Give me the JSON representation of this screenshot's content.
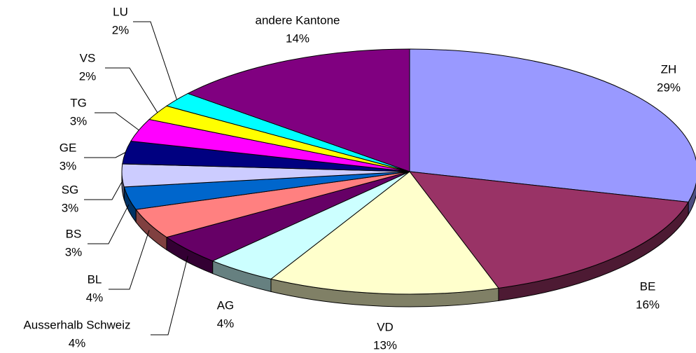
{
  "chart_data": {
    "type": "pie",
    "categories": [
      "ZH",
      "BE",
      "VD",
      "AG",
      "Ausserhalb Schweiz",
      "BL",
      "BS",
      "SG",
      "GE",
      "TG",
      "VS",
      "LU",
      "andere Kantone"
    ],
    "values": [
      29,
      16,
      13,
      4,
      4,
      4,
      3,
      3,
      3,
      3,
      2,
      2,
      14
    ],
    "value_labels": [
      "29%",
      "16%",
      "13%",
      "4%",
      "4%",
      "4%",
      "3%",
      "3%",
      "3%",
      "3%",
      "2%",
      "2%",
      "14%"
    ],
    "colors": [
      "#9999ff",
      "#993366",
      "#ffffcc",
      "#ccffff",
      "#660066",
      "#ff8080",
      "#0066cc",
      "#ccccff",
      "#000080",
      "#ff00ff",
      "#ffff00",
      "#00ffff",
      "#800080"
    ]
  }
}
